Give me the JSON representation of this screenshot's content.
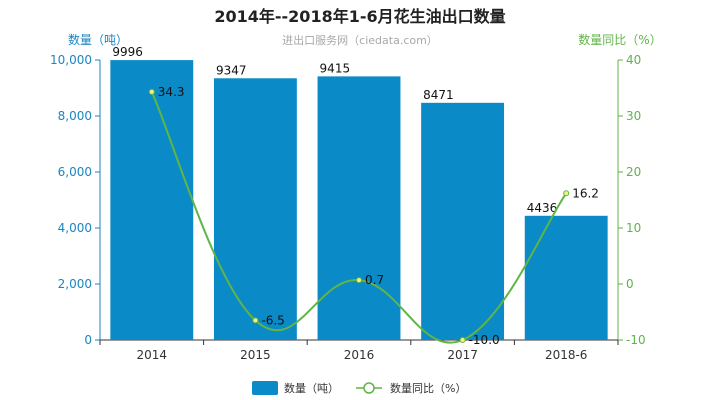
{
  "chart_data": {
    "type": "bar",
    "title": "2014年--2018年1-6月花生油出口数量",
    "subtitle": "进出口服务网（ciedata.com）",
    "categories": [
      "2014",
      "2015",
      "2016",
      "2017",
      "2018-6"
    ],
    "series": [
      {
        "name": "数量（吨）",
        "type": "bar",
        "axis": "left",
        "values": [
          9996,
          9347,
          9415,
          8471,
          4436
        ],
        "color": "#0a8ac6"
      },
      {
        "name": "数量同比（%）",
        "type": "line",
        "axis": "right",
        "values": [
          34.3,
          -6.5,
          0.7,
          -10.0,
          16.2
        ],
        "labels": [
          "34.3",
          "-6.5",
          "0.7",
          "-10.0",
          "16.2"
        ],
        "color": "#5fb548"
      }
    ],
    "y_left": {
      "label": "数量（吨）",
      "range": [
        0,
        10000
      ],
      "ticks": [
        0,
        2000,
        4000,
        6000,
        8000,
        10000
      ],
      "tick_labels": [
        "0",
        "2,000",
        "4,000",
        "6,000",
        "8,000",
        "10,000"
      ],
      "color": "#1a86c2"
    },
    "y_right": {
      "label": "数量同比（%）",
      "range": [
        -10,
        40
      ],
      "ticks": [
        -10,
        0,
        10,
        20,
        30,
        40
      ],
      "tick_labels": [
        "-10",
        "0",
        "10",
        "20",
        "30",
        "40"
      ],
      "color": "#5fb548"
    },
    "grid": false,
    "legend": "bottom-center"
  }
}
